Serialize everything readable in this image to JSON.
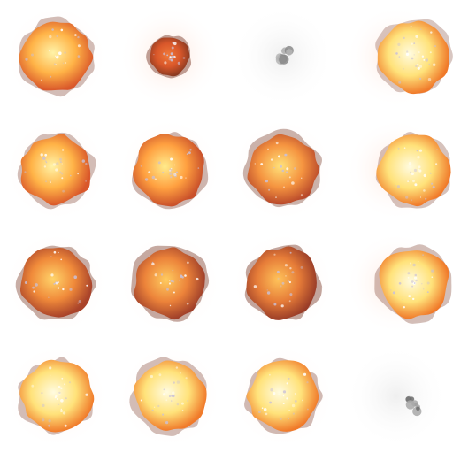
{
  "sprite_sheet": {
    "columns": 4,
    "rows": 4,
    "frames": [
      {
        "id": "r0c0",
        "kind": "fireball",
        "intensity": 0.75,
        "core": "#fff3a8",
        "mid": "#ffb347",
        "rim": "#d9572a",
        "smoke": 0.2
      },
      {
        "id": "r0c1",
        "kind": "ember",
        "intensity": 0.35,
        "core": "#f07a3a",
        "mid": "#d9572a",
        "rim": "#8a3a22",
        "smoke": 0.55
      },
      {
        "id": "r0c2",
        "kind": "smoke",
        "intensity": 0.1,
        "core": "#8a8a8a",
        "mid": "#b5b5b5",
        "rim": "#d6d6d6",
        "smoke": 1.0
      },
      {
        "id": "r0c3",
        "kind": "flash",
        "intensity": 1.0,
        "core": "#fffbe0",
        "mid": "#ffe27a",
        "rim": "#f07a2a",
        "smoke": 0.1
      },
      {
        "id": "r1c0",
        "kind": "fireball",
        "intensity": 0.8,
        "core": "#fff3a8",
        "mid": "#ffb347",
        "rim": "#d9572a",
        "smoke": 0.2
      },
      {
        "id": "r1c1",
        "kind": "fireball",
        "intensity": 0.7,
        "core": "#ffec8c",
        "mid": "#ffa040",
        "rim": "#c9502a",
        "smoke": 0.3
      },
      {
        "id": "r1c2",
        "kind": "fireball",
        "intensity": 0.6,
        "core": "#ffe27a",
        "mid": "#f59440",
        "rim": "#b8482a",
        "smoke": 0.35
      },
      {
        "id": "r1c3",
        "kind": "flash",
        "intensity": 0.95,
        "core": "#fffbe0",
        "mid": "#ffe27a",
        "rim": "#f07a2a",
        "smoke": 0.15
      },
      {
        "id": "r2c0",
        "kind": "fireball",
        "intensity": 0.55,
        "core": "#ffd46a",
        "mid": "#f08a3a",
        "rim": "#a9432a",
        "smoke": 0.4
      },
      {
        "id": "r2c1",
        "kind": "fireball",
        "intensity": 0.5,
        "core": "#ffcc60",
        "mid": "#ec833a",
        "rim": "#a0402a",
        "smoke": 0.45
      },
      {
        "id": "r2c2",
        "kind": "fireball",
        "intensity": 0.45,
        "core": "#ffc35a",
        "mid": "#e67c38",
        "rim": "#9a3d28",
        "smoke": 0.5
      },
      {
        "id": "r2c3",
        "kind": "flash",
        "intensity": 0.9,
        "core": "#fffbe0",
        "mid": "#ffe27a",
        "rim": "#f07a2a",
        "smoke": 0.2
      },
      {
        "id": "r3c0",
        "kind": "flash",
        "intensity": 0.85,
        "core": "#fffbe0",
        "mid": "#ffe27a",
        "rim": "#f07a2a",
        "smoke": 0.2
      },
      {
        "id": "r3c1",
        "kind": "flash",
        "intensity": 0.8,
        "core": "#fffbe0",
        "mid": "#ffe27a",
        "rim": "#f07a2a",
        "smoke": 0.2
      },
      {
        "id": "r3c2",
        "kind": "flash",
        "intensity": 0.75,
        "core": "#fffbe0",
        "mid": "#ffe27a",
        "rim": "#f07a2a",
        "smoke": 0.25
      },
      {
        "id": "r3c3",
        "kind": "smoke",
        "intensity": 0.15,
        "core": "#6e6e6e",
        "mid": "#a8a8a8",
        "rim": "#d0d0d0",
        "smoke": 1.0
      }
    ]
  }
}
